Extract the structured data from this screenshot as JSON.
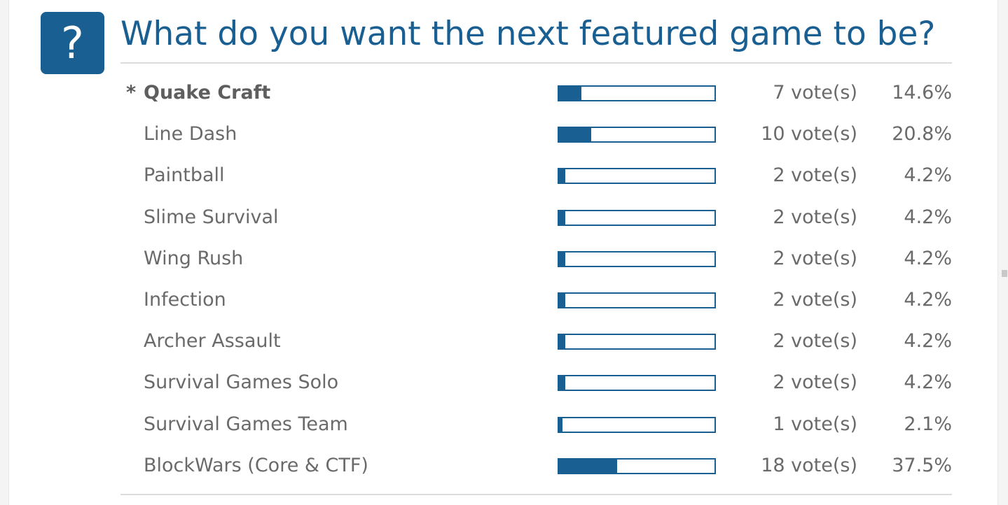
{
  "poll": {
    "icon": "question-mark-icon",
    "icon_glyph": "?",
    "title": "What do you want the next featured game to be?",
    "accent_color": "#1a5f91",
    "voted_marker": "*",
    "options": [
      {
        "label": "Quake Craft",
        "votes": "7 vote(s)",
        "percent": "14.6%",
        "fraction": 0.146,
        "voted": true
      },
      {
        "label": "Line Dash",
        "votes": "10 vote(s)",
        "percent": "20.8%",
        "fraction": 0.208,
        "voted": false
      },
      {
        "label": "Paintball",
        "votes": "2 vote(s)",
        "percent": "4.2%",
        "fraction": 0.042,
        "voted": false
      },
      {
        "label": "Slime Survival",
        "votes": "2 vote(s)",
        "percent": "4.2%",
        "fraction": 0.042,
        "voted": false
      },
      {
        "label": "Wing Rush",
        "votes": "2 vote(s)",
        "percent": "4.2%",
        "fraction": 0.042,
        "voted": false
      },
      {
        "label": "Infection",
        "votes": "2 vote(s)",
        "percent": "4.2%",
        "fraction": 0.042,
        "voted": false
      },
      {
        "label": "Archer Assault",
        "votes": "2 vote(s)",
        "percent": "4.2%",
        "fraction": 0.042,
        "voted": false
      },
      {
        "label": "Survival Games Solo",
        "votes": "2 vote(s)",
        "percent": "4.2%",
        "fraction": 0.042,
        "voted": false
      },
      {
        "label": "Survival Games Team",
        "votes": "1 vote(s)",
        "percent": "2.1%",
        "fraction": 0.021,
        "voted": false
      },
      {
        "label": "BlockWars (Core & CTF)",
        "votes": "18 vote(s)",
        "percent": "37.5%",
        "fraction": 0.375,
        "voted": false
      }
    ]
  }
}
